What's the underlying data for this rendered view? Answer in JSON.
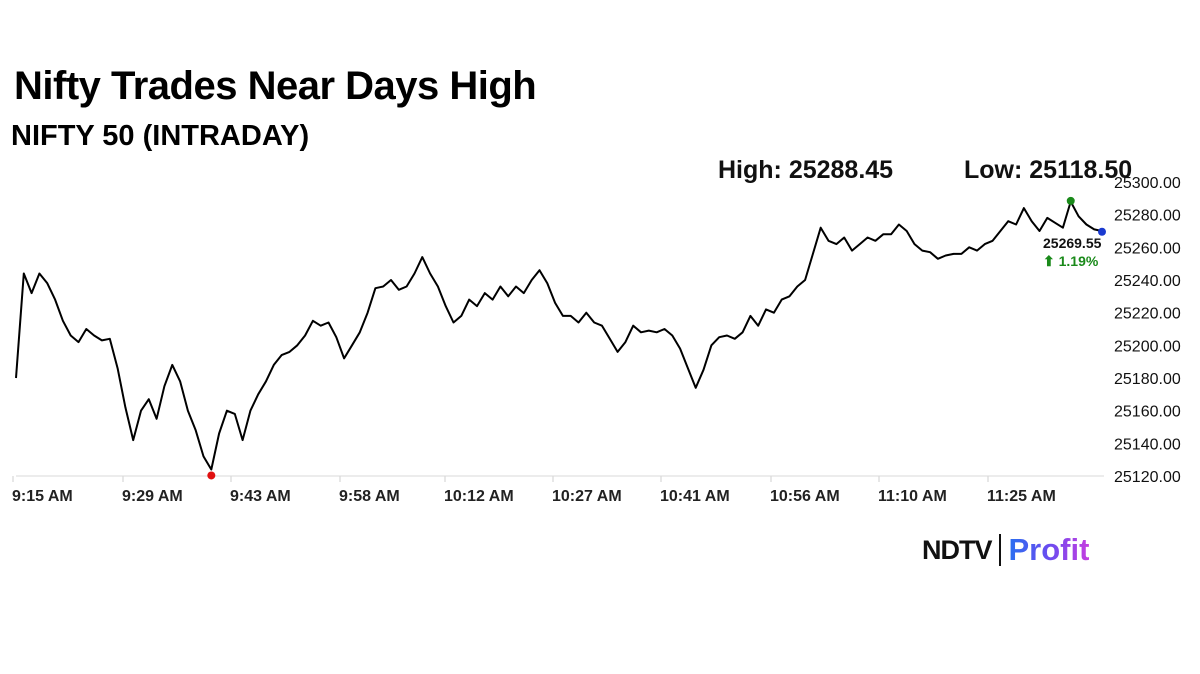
{
  "title": "Nifty Trades Near Days High",
  "subtitle": "NIFTY 50 (INTRADAY)",
  "stats": {
    "high_label": "High: 25288.45",
    "low_label": "Low: 25118.50"
  },
  "brand": {
    "left": "NDTV",
    "right": "Profit"
  },
  "colors": {
    "line": "#000000",
    "high_marker": "#1a8a1a",
    "low_marker": "#e01010",
    "last_marker": "#1a3ad0",
    "change_text": "#1a8a1a",
    "grid": "#d9d9d9"
  },
  "chart_data": {
    "type": "line",
    "title": "NIFTY 50 (INTRADAY)",
    "xlabel": "",
    "ylabel": "",
    "x_ticks": [
      "9:15 AM",
      "9:29 AM",
      "9:43 AM",
      "9:58 AM",
      "10:12 AM",
      "10:27 AM",
      "10:41 AM",
      "10:56 AM",
      "11:10 AM",
      "11:25 AM"
    ],
    "y_ticks": [
      25120.0,
      25140.0,
      25160.0,
      25180.0,
      25200.0,
      25220.0,
      25240.0,
      25260.0,
      25280.0,
      25300.0
    ],
    "y_tick_labels": [
      "25120.00",
      "25140.00",
      "25160.00",
      "25180.00",
      "25200.00",
      "25220.00",
      "25240.00",
      "25260.00",
      "25280.00",
      "25300.00"
    ],
    "ylim": [
      25118,
      25302
    ],
    "grid": "horizontal baseline only",
    "series": [
      {
        "x": [
          "09:15",
          "09:16",
          "09:17",
          "09:18",
          "09:19",
          "09:20",
          "09:21",
          "09:22",
          "09:23",
          "09:24",
          "09:25",
          "09:26",
          "09:27",
          "09:28",
          "09:29",
          "09:30",
          "09:31",
          "09:32",
          "09:33",
          "09:34",
          "09:35",
          "09:36",
          "09:37",
          "09:38",
          "09:39",
          "09:40",
          "09:41",
          "09:42",
          "09:43",
          "09:44",
          "09:45",
          "09:46",
          "09:47",
          "09:48",
          "09:49",
          "09:50",
          "09:51",
          "09:52",
          "09:53",
          "09:54",
          "09:55",
          "09:56",
          "09:57",
          "09:58",
          "09:59",
          "10:00",
          "10:01",
          "10:02",
          "10:03",
          "10:04",
          "10:05",
          "10:06",
          "10:07",
          "10:08",
          "10:09",
          "10:10",
          "10:11",
          "10:12",
          "10:13",
          "10:14",
          "10:15",
          "10:16",
          "10:17",
          "10:18",
          "10:19",
          "10:20",
          "10:21",
          "10:22",
          "10:23",
          "10:24",
          "10:25",
          "10:26",
          "10:27",
          "10:28",
          "10:29",
          "10:30",
          "10:31",
          "10:32",
          "10:33",
          "10:34",
          "10:35",
          "10:36",
          "10:37",
          "10:38",
          "10:39",
          "10:40",
          "10:41",
          "10:42",
          "10:43",
          "10:44",
          "10:45",
          "10:46",
          "10:47",
          "10:48",
          "10:49",
          "10:50",
          "10:51",
          "10:52",
          "10:53",
          "10:54",
          "10:55",
          "10:56",
          "10:57",
          "10:58",
          "10:59",
          "11:00",
          "11:01",
          "11:02",
          "11:03",
          "11:04",
          "11:05",
          "11:06",
          "11:07",
          "11:08",
          "11:09",
          "11:10",
          "11:11",
          "11:12",
          "11:13",
          "11:14",
          "11:15",
          "11:16",
          "11:17",
          "11:18",
          "11:19",
          "11:20",
          "11:21",
          "11:22",
          "11:23",
          "11:24",
          "11:25",
          "11:26",
          "11:27",
          "11:28",
          "11:29",
          "11:30",
          "11:31",
          "11:32",
          "11:33",
          "11:34"
        ],
        "values": [
          25180,
          25244,
          25232,
          25244,
          25238,
          25228,
          25215,
          25206,
          25202,
          25210,
          25206,
          25203,
          25204,
          25186,
          25162,
          25142,
          25160,
          25167,
          25155,
          25175,
          25188,
          25178,
          25160,
          25148,
          25132,
          25124,
          25146,
          25160,
          25158,
          25142,
          25160,
          25170,
          25178,
          25188,
          25194,
          25196,
          25200,
          25206,
          25215,
          25212,
          25214,
          25205,
          25192,
          25200,
          25208,
          25220,
          25235,
          25236,
          25240,
          25234,
          25236,
          25244,
          25254,
          25244,
          25236,
          25224,
          25214,
          25218,
          25228,
          25224,
          25232,
          25228,
          25236,
          25230,
          25236,
          25232,
          25240,
          25246,
          25238,
          25226,
          25218,
          25218,
          25214,
          25220,
          25214,
          25212,
          25204,
          25196,
          25202,
          25212,
          25208,
          25209,
          25208,
          25210,
          25206,
          25198,
          25186,
          25174,
          25185,
          25200,
          25205,
          25206,
          25204,
          25208,
          25218,
          25212,
          25222,
          25220,
          25228,
          25230,
          25236,
          25240,
          25256,
          25272,
          25264,
          25262,
          25266,
          25258,
          25262,
          25266,
          25264,
          25268,
          25268,
          25274,
          25270,
          25262,
          25258,
          25257,
          25253,
          25255,
          25256,
          25256,
          25260,
          25258,
          25262,
          25264,
          25270,
          25276,
          25274,
          25284,
          25276,
          25270,
          25278,
          25275,
          25272,
          25288,
          25279,
          25274,
          25271,
          25270
        ]
      }
    ],
    "annotations": {
      "high": {
        "x": "11:30",
        "value": 25288.45,
        "label": "High: 25288.45"
      },
      "low": {
        "x": "09:40",
        "value": 25118.5,
        "label": "Low: 25118.50"
      },
      "last": {
        "x": "11:34",
        "value": 25269.55,
        "value_label": "25269.55",
        "change_label": "⬆ 1.19%"
      }
    }
  }
}
